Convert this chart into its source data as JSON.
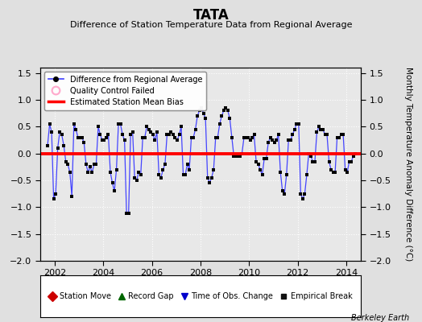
{
  "title": "TATA",
  "subtitle": "Difference of Station Temperature Data from Regional Average",
  "ylabel_right": "Monthly Temperature Anomaly Difference (°C)",
  "background_color": "#e0e0e0",
  "plot_bg_color": "#e8e8e8",
  "bias_value": 0.0,
  "xlim": [
    2001.4,
    2014.6
  ],
  "ylim": [
    -2.0,
    1.6
  ],
  "yticks": [
    -2.0,
    -1.5,
    -1.0,
    -0.5,
    0.0,
    0.5,
    1.0,
    1.5
  ],
  "xticks": [
    2002,
    2004,
    2006,
    2008,
    2010,
    2012,
    2014
  ],
  "time_series": [
    2001.708,
    2001.792,
    2001.875,
    2001.958,
    2002.042,
    2002.125,
    2002.208,
    2002.292,
    2002.375,
    2002.458,
    2002.542,
    2002.625,
    2002.708,
    2002.792,
    2002.875,
    2002.958,
    2003.042,
    2003.125,
    2003.208,
    2003.292,
    2003.375,
    2003.458,
    2003.542,
    2003.625,
    2003.708,
    2003.792,
    2003.875,
    2003.958,
    2004.042,
    2004.125,
    2004.208,
    2004.292,
    2004.375,
    2004.458,
    2004.542,
    2004.625,
    2004.708,
    2004.792,
    2004.875,
    2004.958,
    2005.042,
    2005.125,
    2005.208,
    2005.292,
    2005.375,
    2005.458,
    2005.542,
    2005.625,
    2005.708,
    2005.792,
    2005.875,
    2005.958,
    2006.042,
    2006.125,
    2006.208,
    2006.292,
    2006.375,
    2006.458,
    2006.542,
    2006.625,
    2006.708,
    2006.792,
    2006.875,
    2006.958,
    2007.042,
    2007.125,
    2007.208,
    2007.292,
    2007.375,
    2007.458,
    2007.542,
    2007.625,
    2007.708,
    2007.792,
    2007.875,
    2007.958,
    2008.042,
    2008.125,
    2008.208,
    2008.292,
    2008.375,
    2008.458,
    2008.542,
    2008.625,
    2008.708,
    2008.792,
    2008.875,
    2008.958,
    2009.042,
    2009.125,
    2009.208,
    2009.292,
    2009.375,
    2009.458,
    2009.542,
    2009.625,
    2009.708,
    2009.792,
    2009.875,
    2009.958,
    2010.042,
    2010.125,
    2010.208,
    2010.292,
    2010.375,
    2010.458,
    2010.542,
    2010.625,
    2010.708,
    2010.792,
    2010.875,
    2010.958,
    2011.042,
    2011.125,
    2011.208,
    2011.292,
    2011.375,
    2011.458,
    2011.542,
    2011.625,
    2011.708,
    2011.792,
    2011.875,
    2011.958,
    2012.042,
    2012.125,
    2012.208,
    2012.292,
    2012.375,
    2012.458,
    2012.542,
    2012.625,
    2012.708,
    2012.792,
    2012.875,
    2012.958,
    2013.042,
    2013.125,
    2013.208,
    2013.292,
    2013.375,
    2013.458,
    2013.542,
    2013.625,
    2013.708,
    2013.792,
    2013.875,
    2013.958,
    2014.042,
    2014.125,
    2014.208,
    2014.292,
    2014.375
  ],
  "values": [
    0.15,
    0.55,
    0.4,
    -0.85,
    -0.75,
    0.1,
    0.4,
    0.35,
    0.15,
    -0.15,
    -0.2,
    -0.35,
    -0.8,
    0.55,
    0.45,
    0.3,
    0.3,
    0.3,
    0.2,
    -0.2,
    -0.35,
    -0.25,
    -0.35,
    -0.2,
    -0.2,
    0.5,
    0.35,
    0.25,
    0.25,
    0.3,
    0.35,
    -0.35,
    -0.55,
    -0.7,
    -0.3,
    0.55,
    0.55,
    0.35,
    0.25,
    -1.12,
    -1.12,
    0.35,
    0.4,
    -0.45,
    -0.5,
    -0.35,
    -0.4,
    0.3,
    0.3,
    0.5,
    0.45,
    0.4,
    0.35,
    0.25,
    0.4,
    -0.4,
    -0.45,
    -0.3,
    -0.2,
    0.35,
    0.35,
    0.4,
    0.35,
    0.3,
    0.25,
    0.35,
    0.5,
    -0.4,
    -0.4,
    -0.2,
    -0.3,
    0.3,
    0.3,
    0.45,
    0.7,
    0.8,
    0.85,
    0.75,
    0.65,
    -0.45,
    -0.55,
    -0.45,
    -0.3,
    0.3,
    0.3,
    0.55,
    0.7,
    0.8,
    0.85,
    0.8,
    0.65,
    0.3,
    -0.05,
    -0.05,
    -0.05,
    -0.05,
    0.0,
    0.3,
    0.3,
    0.3,
    0.25,
    0.3,
    0.35,
    -0.15,
    -0.2,
    -0.3,
    -0.4,
    -0.1,
    -0.1,
    0.2,
    0.3,
    0.25,
    0.2,
    0.25,
    0.35,
    -0.35,
    -0.7,
    -0.75,
    -0.4,
    0.25,
    0.25,
    0.35,
    0.45,
    0.55,
    0.55,
    -0.75,
    -0.85,
    -0.75,
    -0.4,
    0.0,
    -0.05,
    -0.15,
    -0.15,
    0.4,
    0.5,
    0.45,
    0.45,
    0.35,
    0.35,
    -0.15,
    -0.3,
    -0.35,
    -0.35,
    0.3,
    0.3,
    0.35,
    0.35,
    -0.3,
    -0.35,
    -0.15,
    -0.15,
    -0.05,
    0.0
  ],
  "line_color": "#4444ff",
  "marker_color": "#000000",
  "bias_color": "#ff0000",
  "grid_color": "#ffffff",
  "legend1_items": [
    {
      "label": "Difference from Regional Average",
      "color": "#4444ff",
      "type": "line_dot"
    },
    {
      "label": "Quality Control Failed",
      "color": "#ffaacc",
      "type": "circle_open"
    },
    {
      "label": "Estimated Station Mean Bias",
      "color": "#ff0000",
      "type": "hline"
    }
  ],
  "legend2_items": [
    {
      "label": "Station Move",
      "color": "#cc0000",
      "marker": "D"
    },
    {
      "label": "Record Gap",
      "color": "#006600",
      "marker": "^"
    },
    {
      "label": "Time of Obs. Change",
      "color": "#0000cc",
      "marker": "v"
    },
    {
      "label": "Empirical Break",
      "color": "#111111",
      "marker": "s"
    }
  ],
  "watermark": "Berkeley Earth"
}
